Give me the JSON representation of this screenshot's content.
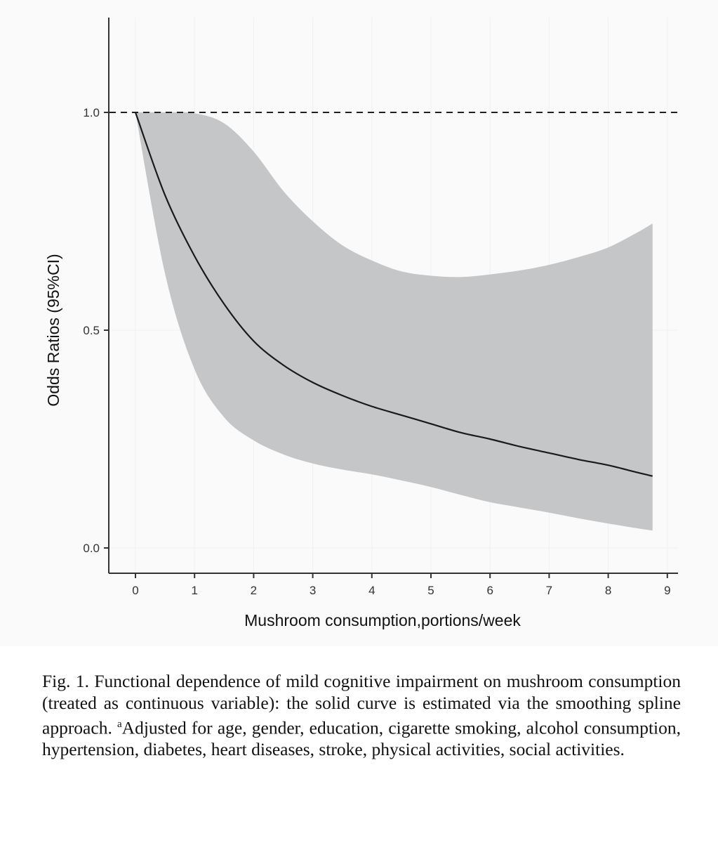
{
  "chart_data": {
    "type": "line",
    "title": "",
    "xlabel": "Mushroom consumption,portions/week",
    "ylabel": "Odds Ratios (95%CI)",
    "xlim": [
      -0.45,
      9.15
    ],
    "ylim": [
      -0.06,
      1.2
    ],
    "x_ticks": [
      "0",
      "1",
      "2",
      "3",
      "4",
      "5",
      "6",
      "7",
      "8",
      "9"
    ],
    "y_ticks": [
      "0.0",
      "0.5",
      "1.0"
    ],
    "reference_line": {
      "y": 1.0,
      "style": "dashed"
    },
    "grid": true,
    "x": [
      0,
      0.5,
      1,
      1.5,
      2,
      2.5,
      3,
      3.5,
      4,
      4.5,
      5,
      5.5,
      6,
      6.5,
      7,
      7.5,
      8,
      8.5,
      8.75
    ],
    "series": [
      {
        "name": "Odds ratio",
        "values": [
          1.0,
          0.81,
          0.67,
          0.56,
          0.475,
          0.42,
          0.38,
          0.35,
          0.325,
          0.305,
          0.285,
          0.265,
          0.25,
          0.233,
          0.218,
          0.203,
          0.19,
          0.173,
          0.165
        ]
      },
      {
        "name": "Upper 95% CI",
        "values": [
          1.0,
          1.0,
          0.998,
          0.975,
          0.91,
          0.82,
          0.75,
          0.695,
          0.66,
          0.635,
          0.625,
          0.622,
          0.628,
          0.637,
          0.65,
          0.668,
          0.69,
          0.725,
          0.745
        ]
      },
      {
        "name": "Lower 95% CI",
        "values": [
          1.0,
          0.63,
          0.41,
          0.3,
          0.247,
          0.215,
          0.194,
          0.18,
          0.169,
          0.155,
          0.14,
          0.122,
          0.105,
          0.093,
          0.081,
          0.068,
          0.056,
          0.045,
          0.04
        ]
      }
    ]
  },
  "caption": {
    "lead": "Fig. 1. Functional dependence of mild cognitive impairment on mushroom consumption (treated as continuous variable): the solid curve is estimated via the smoothing spline approach.",
    "sup": "a",
    "tail": "Adjusted for age, gender, education, cigarette smoking, alcohol consumption, hypertension, diabetes, heart diseases, stroke, physical activities, social activities."
  }
}
